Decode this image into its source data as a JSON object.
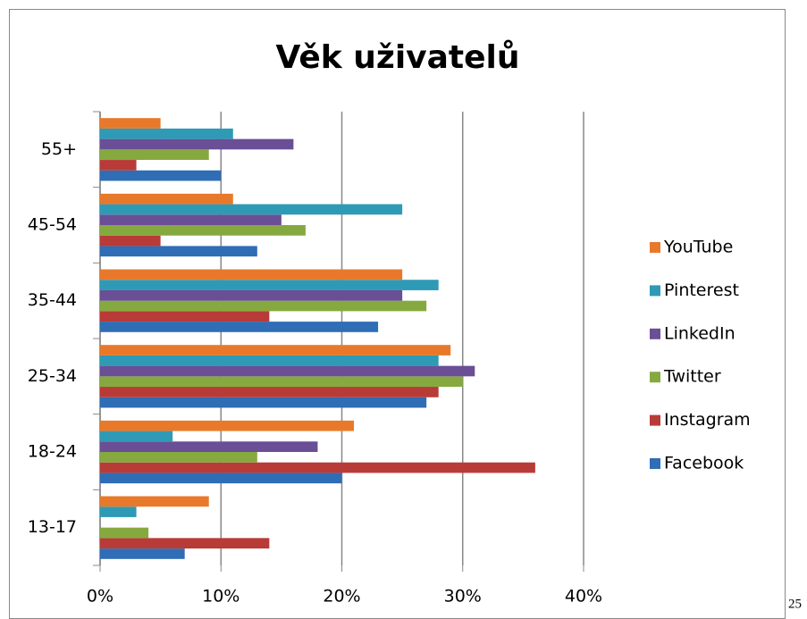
{
  "chart_data": {
    "type": "barh",
    "title": "Věk uživatelů",
    "categories": [
      "13-17",
      "18-24",
      "25-34",
      "35-44",
      "45-54",
      "55+"
    ],
    "series": [
      {
        "name": "Facebook",
        "color": "#2f6db5",
        "values": [
          7,
          20,
          27,
          23,
          13,
          10
        ]
      },
      {
        "name": "Instagram",
        "color": "#b83b38",
        "values": [
          14,
          36,
          28,
          14,
          5,
          3
        ]
      },
      {
        "name": "Twitter",
        "color": "#86a93f",
        "values": [
          4,
          13,
          30,
          27,
          17,
          9
        ]
      },
      {
        "name": "LinkedIn",
        "color": "#6a4e96",
        "values": [
          0,
          18,
          31,
          25,
          15,
          16
        ]
      },
      {
        "name": "Pinterest",
        "color": "#2f9ab5",
        "values": [
          3,
          6,
          28,
          28,
          25,
          11
        ]
      },
      {
        "name": "YouTube",
        "color": "#e8792a",
        "values": [
          9,
          21,
          29,
          25,
          11,
          5
        ]
      }
    ],
    "xlim": [
      0,
      40
    ],
    "xticks": [
      {
        "value": 0,
        "label": "0%"
      },
      {
        "value": 10,
        "label": "10%"
      },
      {
        "value": 20,
        "label": "20%"
      },
      {
        "value": 30,
        "label": "30%"
      },
      {
        "value": 40,
        "label": "40%"
      }
    ],
    "grid": true,
    "legend": "right"
  },
  "page_number": "25"
}
